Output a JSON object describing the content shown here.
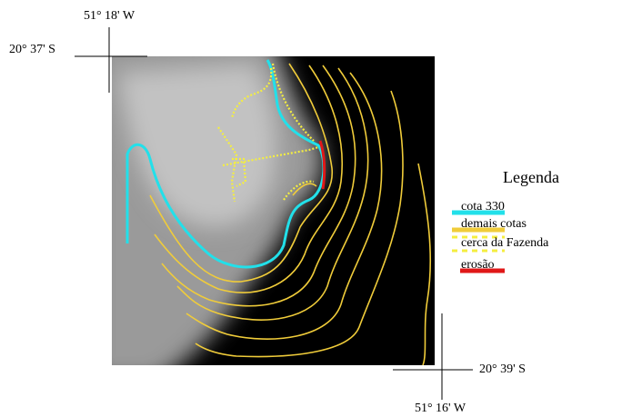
{
  "coordinates": {
    "top_left_lon": "51° 18' W",
    "top_left_lat": "20° 37' S",
    "bottom_right_lat": "20° 39' S",
    "bottom_right_lon": "51° 16' W"
  },
  "legend": {
    "title": "Legenda",
    "items": [
      {
        "label": "cota 330",
        "color": "#22e0ea"
      },
      {
        "label": "demais cotas",
        "color": "#f0cc3a"
      },
      {
        "label": "cerca da Fazenda",
        "color": "#f4ee40"
      },
      {
        "label": "erosão",
        "color": "#e01818"
      }
    ]
  }
}
